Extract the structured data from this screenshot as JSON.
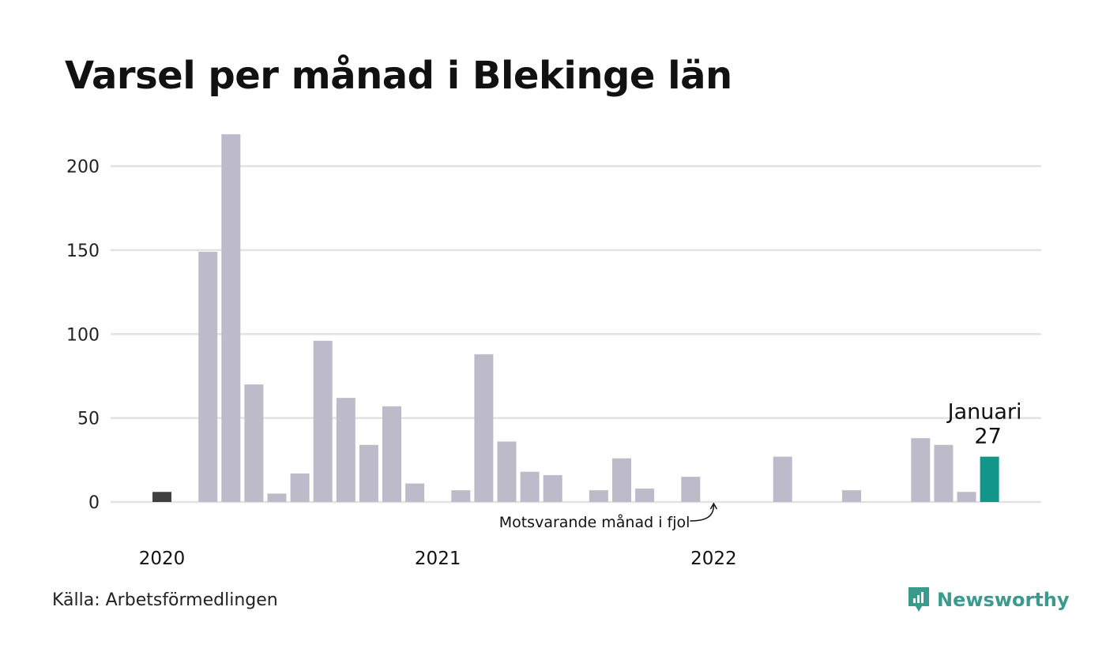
{
  "title": "Varsel per månad i Blekinge län",
  "source": "Källa: Arbetsförmedlingen",
  "brand": {
    "name": "Newsworthy",
    "icon": "newsworthy-chart-bubble-icon"
  },
  "colors": {
    "bar": "#bdbbc9",
    "reference": "#404040",
    "highlight": "#12968a",
    "grid": "#e2e2e2",
    "brand": "#3a9a8c"
  },
  "chart_data": {
    "type": "bar",
    "title": "Varsel per månad i Blekinge län",
    "xlabel": "",
    "ylabel": "",
    "ylim": [
      0,
      220
    ],
    "yticks": [
      0,
      50,
      100,
      150,
      200
    ],
    "grid": true,
    "year_labels": [
      {
        "label": "2020",
        "index": 0
      },
      {
        "label": "2021",
        "index": 12
      },
      {
        "label": "2022",
        "index": 24
      }
    ],
    "categories": [
      "2020-01",
      "2020-02",
      "2020-03",
      "2020-04",
      "2020-05",
      "2020-06",
      "2020-07",
      "2020-08",
      "2020-09",
      "2020-10",
      "2020-11",
      "2020-12",
      "2021-01",
      "2021-02",
      "2021-03",
      "2021-04",
      "2021-05",
      "2021-06",
      "2021-07",
      "2021-08",
      "2021-09",
      "2021-10",
      "2021-11",
      "2021-12",
      "2022-01",
      "2022-02",
      "2022-03",
      "2022-04",
      "2022-05",
      "2022-06",
      "2022-07",
      "2022-08",
      "2022-09",
      "2022-10",
      "2022-11",
      "2022-12",
      "2023-01"
    ],
    "values": [
      6,
      0,
      149,
      219,
      70,
      5,
      17,
      96,
      62,
      34,
      57,
      11,
      0,
      7,
      88,
      36,
      18,
      16,
      0,
      7,
      26,
      8,
      0,
      15,
      0,
      0,
      0,
      27,
      0,
      0,
      7,
      0,
      0,
      38,
      34,
      6,
      27
    ],
    "reference_index": 0,
    "highlight_index": 36,
    "highlight_label": {
      "month": "Januari",
      "value": "27"
    },
    "annotation": {
      "text": "Motsvarande månad i fjol",
      "index": 24
    }
  }
}
